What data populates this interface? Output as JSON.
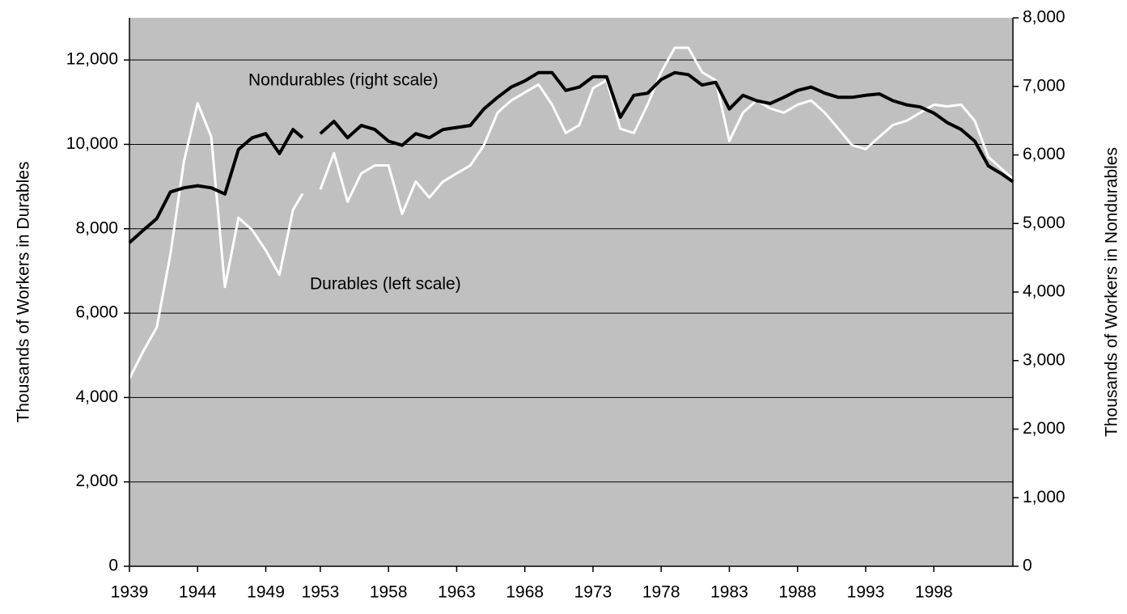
{
  "chart_data": {
    "type": "line",
    "ylabel": "Thousands of Workers in Durables",
    "y2label": "Thousands of Workers in Nondurables",
    "x": [
      1939,
      1940,
      1941,
      1942,
      1943,
      1944,
      1945,
      1946,
      1947,
      1948,
      1949,
      1950,
      1951,
      1951.7,
      1952,
      1953,
      1954,
      1955,
      1956,
      1957,
      1958,
      1959,
      1960,
      1961,
      1962,
      1963,
      1964,
      1965,
      1966,
      1967,
      1968,
      1969,
      1970,
      1971,
      1972,
      1973,
      1974,
      1975,
      1976,
      1977,
      1978,
      1979,
      1980,
      1981,
      1982,
      1983,
      1984,
      1985,
      1986,
      1987,
      1988,
      1989,
      1990,
      1991,
      1992,
      1993,
      1994,
      1995,
      1996,
      1997,
      1998,
      1999,
      2000,
      2001,
      2002,
      2003,
      2003.8
    ],
    "xlim": [
      1939,
      2003.8
    ],
    "xticks": [
      1939,
      1944,
      1949,
      1953,
      1958,
      1963,
      1968,
      1973,
      1978,
      1983,
      1988,
      1993,
      1998
    ],
    "ylim": [
      0,
      13000
    ],
    "yticks": [
      0,
      {
        "value": 2000,
        "label": "2,000"
      },
      {
        "value": 4000,
        "label": "4,000"
      },
      {
        "value": 6000,
        "label": "6,000"
      },
      {
        "value": 8000,
        "label": "8,000"
      },
      {
        "value": 10000,
        "label": "10,000"
      },
      {
        "value": 12000,
        "label": "12,000"
      }
    ],
    "y2lim": [
      0,
      8000
    ],
    "y2ticks": [
      0,
      {
        "value": 1000,
        "label": "1,000"
      },
      {
        "value": 2000,
        "label": "2,000"
      },
      {
        "value": 3000,
        "label": "3,000"
      },
      {
        "value": 4000,
        "label": "4,000"
      },
      {
        "value": 5000,
        "label": "5,000"
      },
      {
        "value": 6000,
        "label": "6,000"
      },
      {
        "value": 7000,
        "label": "7,000"
      },
      {
        "value": 8000,
        "label": "8,000"
      }
    ],
    "grid": true,
    "series": [
      {
        "name": "Durables (left scale)",
        "color": "#ffffff",
        "values": [
          4450,
          5090,
          5660,
          7390,
          9600,
          10980,
          10180,
          6620,
          8260,
          7970,
          7490,
          6910,
          8450,
          8830,
          null,
          8930,
          9790,
          8640,
          9310,
          9500,
          9500,
          8350,
          9120,
          8740,
          9120,
          9310,
          9500,
          9980,
          10750,
          11040,
          11230,
          11420,
          10940,
          10270,
          10460,
          11330,
          11520,
          10370,
          10270,
          10940,
          11710,
          12290,
          12290,
          11710,
          11520,
          10080,
          10750,
          11040,
          10850,
          10750,
          10940,
          11040,
          10750,
          10370,
          9980,
          9890,
          10180,
          10460,
          10560,
          10750,
          10940,
          10900,
          10940,
          10560,
          9700,
          9410,
          9180
        ]
      },
      {
        "name": "Nondurables (right scale)",
        "color": "#000000",
        "axis": "y2",
        "values": [
          4720,
          4900,
          5070,
          5460,
          5520,
          5550,
          5520,
          5430,
          6080,
          6250,
          6310,
          6020,
          6370,
          6250,
          null,
          6310,
          6490,
          6250,
          6430,
          6370,
          6200,
          6140,
          6310,
          6250,
          6370,
          6400,
          6430,
          6670,
          6840,
          6990,
          7080,
          7200,
          7200,
          6940,
          6990,
          7140,
          7140,
          6550,
          6870,
          6900,
          7100,
          7200,
          7170,
          7020,
          7060,
          6670,
          6870,
          6790,
          6750,
          6840,
          6940,
          6990,
          6900,
          6840,
          6840,
          6870,
          6890,
          6790,
          6730,
          6700,
          6610,
          6470,
          6370,
          6200,
          5840,
          5720,
          5610
        ]
      }
    ]
  }
}
